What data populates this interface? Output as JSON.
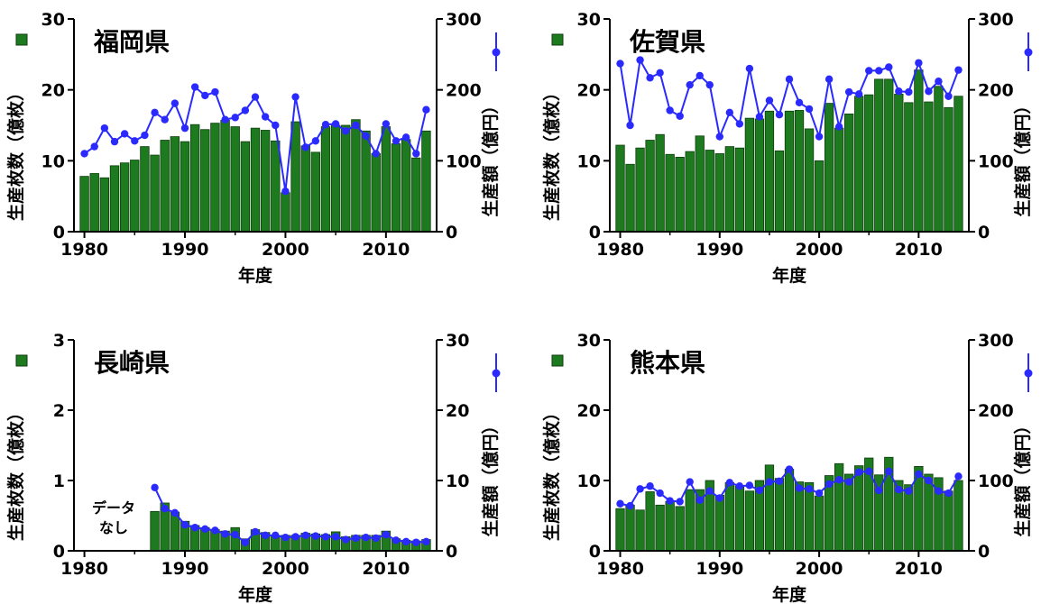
{
  "chart_data": [
    {
      "type": "bar+line",
      "title": "福岡県",
      "xlabel": "年度",
      "ylabel_left": "生産枚数（億枚）",
      "ylabel_right": "生産額（億円）",
      "ylim_left": [
        0,
        30
      ],
      "ylim_right": [
        0,
        300
      ],
      "yticks_left": [
        "0",
        "10",
        "20",
        "30"
      ],
      "yticks_right": [
        "0",
        "100",
        "200",
        "300"
      ],
      "xticks": [
        "1980",
        "1990",
        "2000",
        "2010"
      ],
      "xlim": [
        1980,
        2014
      ],
      "annotation": "",
      "series": [
        {
          "kind": "bar",
          "axis": "left",
          "color": "#1e7a1e",
          "x": [
            1980,
            1981,
            1982,
            1983,
            1984,
            1985,
            1986,
            1987,
            1988,
            1989,
            1990,
            1991,
            1992,
            1993,
            1994,
            1995,
            1996,
            1997,
            1998,
            1999,
            2000,
            2001,
            2002,
            2003,
            2004,
            2005,
            2006,
            2007,
            2008,
            2009,
            2010,
            2011,
            2012,
            2013,
            2014
          ],
          "values": [
            7.8,
            8.2,
            7.6,
            9.3,
            9.7,
            10.1,
            12.0,
            10.8,
            12.9,
            13.4,
            12.7,
            15.1,
            14.4,
            15.3,
            15.7,
            14.8,
            12.7,
            14.6,
            14.3,
            12.8,
            5.5,
            15.5,
            12.1,
            11.2,
            14.8,
            15.0,
            15.0,
            15.8,
            14.2,
            11.0,
            14.8,
            12.4,
            13.0,
            10.4,
            14.2
          ]
        },
        {
          "kind": "line",
          "axis": "right",
          "color": "#2a2aff",
          "x": [
            1980,
            1981,
            1982,
            1983,
            1984,
            1985,
            1986,
            1987,
            1988,
            1989,
            1990,
            1991,
            1992,
            1993,
            1994,
            1995,
            1996,
            1997,
            1998,
            1999,
            2000,
            2001,
            2002,
            2003,
            2004,
            2005,
            2006,
            2007,
            2008,
            2009,
            2010,
            2011,
            2012,
            2013,
            2014
          ],
          "values": [
            110,
            120,
            146,
            127,
            138,
            128,
            136,
            168,
            158,
            181,
            146,
            204,
            192,
            197,
            158,
            161,
            171,
            190,
            162,
            150,
            57,
            190,
            119,
            128,
            151,
            152,
            142,
            150,
            135,
            110,
            152,
            128,
            133,
            110,
            172
          ]
        }
      ]
    },
    {
      "type": "bar+line",
      "title": "佐賀県",
      "xlabel": "年度",
      "ylabel_left": "生産枚数（億枚）",
      "ylabel_right": "生産額（億円）",
      "ylim_left": [
        0,
        30
      ],
      "ylim_right": [
        0,
        300
      ],
      "yticks_left": [
        "0",
        "10",
        "20",
        "30"
      ],
      "yticks_right": [
        "0",
        "100",
        "200",
        "300"
      ],
      "xticks": [
        "1980",
        "1990",
        "2000",
        "2010"
      ],
      "xlim": [
        1980,
        2014
      ],
      "annotation": "",
      "series": [
        {
          "kind": "bar",
          "axis": "left",
          "color": "#1e7a1e",
          "x": [
            1980,
            1981,
            1982,
            1983,
            1984,
            1985,
            1986,
            1987,
            1988,
            1989,
            1990,
            1991,
            1992,
            1993,
            1994,
            1995,
            1996,
            1997,
            1998,
            1999,
            2000,
            2001,
            2002,
            2003,
            2004,
            2005,
            2006,
            2007,
            2008,
            2009,
            2010,
            2011,
            2012,
            2013,
            2014
          ],
          "values": [
            12.2,
            9.5,
            11.8,
            12.9,
            13.7,
            10.9,
            10.5,
            11.3,
            13.5,
            11.5,
            11.0,
            12.0,
            11.8,
            16.0,
            15.9,
            17.0,
            11.4,
            17.0,
            17.1,
            14.5,
            10.0,
            18.1,
            14.6,
            16.6,
            19.1,
            19.3,
            21.5,
            21.5,
            19.4,
            18.2,
            22.8,
            18.3,
            20.5,
            17.5,
            19.1
          ]
        },
        {
          "kind": "line",
          "axis": "right",
          "color": "#2a2aff",
          "x": [
            1980,
            1981,
            1982,
            1983,
            1984,
            1985,
            1986,
            1987,
            1988,
            1989,
            1990,
            1991,
            1992,
            1993,
            1994,
            1995,
            1996,
            1997,
            1998,
            1999,
            2000,
            2001,
            2002,
            2003,
            2004,
            2005,
            2006,
            2007,
            2008,
            2009,
            2010,
            2011,
            2012,
            2013,
            2014
          ],
          "values": [
            237,
            150,
            242,
            217,
            224,
            171,
            163,
            207,
            220,
            207,
            134,
            168,
            152,
            230,
            162,
            185,
            165,
            215,
            182,
            173,
            134,
            215,
            148,
            197,
            194,
            227,
            227,
            232,
            198,
            197,
            238,
            198,
            212,
            191,
            228
          ]
        }
      ]
    },
    {
      "type": "bar+line",
      "title": "長崎県",
      "xlabel": "年度",
      "ylabel_left": "生産枚数（億枚）",
      "ylabel_right": "生産額（億円）",
      "ylim_left": [
        0,
        3
      ],
      "ylim_right": [
        0,
        30
      ],
      "yticks_left": [
        "0",
        "1",
        "2",
        "3"
      ],
      "yticks_right": [
        "0",
        "10",
        "20",
        "30"
      ],
      "xticks": [
        "1980",
        "1990",
        "2000",
        "2010"
      ],
      "xlim": [
        1980,
        2014
      ],
      "annotation": "データ\nなし",
      "series": [
        {
          "kind": "bar",
          "axis": "left",
          "color": "#1e7a1e",
          "x": [
            1987,
            1988,
            1989,
            1990,
            1991,
            1992,
            1993,
            1994,
            1995,
            1996,
            1997,
            1998,
            1999,
            2000,
            2001,
            2002,
            2003,
            2004,
            2005,
            2006,
            2007,
            2008,
            2009,
            2010,
            2011,
            2012,
            2013,
            2014
          ],
          "values": [
            0.56,
            0.68,
            0.55,
            0.42,
            0.36,
            0.33,
            0.3,
            0.28,
            0.33,
            0.17,
            0.3,
            0.26,
            0.22,
            0.22,
            0.22,
            0.25,
            0.24,
            0.23,
            0.27,
            0.2,
            0.22,
            0.22,
            0.22,
            0.28,
            0.17,
            0.15,
            0.14,
            0.16
          ]
        },
        {
          "kind": "line",
          "axis": "right",
          "color": "#2a2aff",
          "x": [
            1987,
            1988,
            1989,
            1990,
            1991,
            1992,
            1993,
            1994,
            1995,
            1996,
            1997,
            1998,
            1999,
            2000,
            2001,
            2002,
            2003,
            2004,
            2005,
            2006,
            2007,
            2008,
            2009,
            2010,
            2011,
            2012,
            2013,
            2014
          ],
          "values": [
            9.0,
            6.0,
            5.4,
            3.7,
            3.3,
            3.1,
            2.9,
            2.4,
            2.3,
            1.2,
            2.7,
            2.2,
            2.2,
            1.9,
            2.0,
            2.2,
            2.1,
            2.0,
            2.0,
            1.6,
            1.8,
            1.9,
            1.8,
            2.3,
            1.5,
            1.3,
            1.2,
            1.3
          ]
        }
      ]
    },
    {
      "type": "bar+line",
      "title": "熊本県",
      "xlabel": "年度",
      "ylabel_left": "生産枚数（億枚）",
      "ylabel_right": "生産額（億円）",
      "ylim_left": [
        0,
        30
      ],
      "ylim_right": [
        0,
        300
      ],
      "yticks_left": [
        "0",
        "10",
        "20",
        "30"
      ],
      "yticks_right": [
        "0",
        "100",
        "200",
        "300"
      ],
      "xticks": [
        "1980",
        "1990",
        "2000",
        "2010"
      ],
      "xlim": [
        1980,
        2014
      ],
      "annotation": "",
      "series": [
        {
          "kind": "bar",
          "axis": "left",
          "color": "#1e7a1e",
          "x": [
            1980,
            1981,
            1982,
            1983,
            1984,
            1985,
            1986,
            1987,
            1988,
            1989,
            1990,
            1991,
            1992,
            1993,
            1994,
            1995,
            1996,
            1997,
            1998,
            1999,
            2000,
            2001,
            2002,
            2003,
            2004,
            2005,
            2006,
            2007,
            2008,
            2009,
            2010,
            2011,
            2012,
            2013,
            2014
          ],
          "values": [
            6.0,
            6.5,
            5.8,
            8.4,
            6.5,
            7.0,
            6.3,
            8.7,
            8.7,
            10.0,
            7.9,
            9.7,
            9.2,
            8.5,
            10.0,
            12.2,
            10.3,
            11.6,
            9.8,
            9.7,
            7.8,
            10.7,
            12.4,
            10.9,
            12.1,
            13.2,
            10.8,
            13.3,
            10.0,
            9.4,
            12.0,
            10.9,
            10.4,
            8.5,
            10.0
          ]
        },
        {
          "kind": "line",
          "axis": "right",
          "color": "#2a2aff",
          "x": [
            1980,
            1981,
            1982,
            1983,
            1984,
            1985,
            1986,
            1987,
            1988,
            1989,
            1990,
            1991,
            1992,
            1993,
            1994,
            1995,
            1996,
            1997,
            1998,
            1999,
            2000,
            2001,
            2002,
            2003,
            2004,
            2005,
            2006,
            2007,
            2008,
            2009,
            2010,
            2011,
            2012,
            2013,
            2014
          ],
          "values": [
            67,
            64,
            88,
            92,
            82,
            71,
            70,
            98,
            72,
            85,
            75,
            97,
            92,
            93,
            86,
            98,
            99,
            116,
            89,
            88,
            82,
            95,
            101,
            98,
            112,
            113,
            86,
            113,
            87,
            85,
            109,
            100,
            85,
            82,
            106
          ]
        }
      ]
    }
  ]
}
